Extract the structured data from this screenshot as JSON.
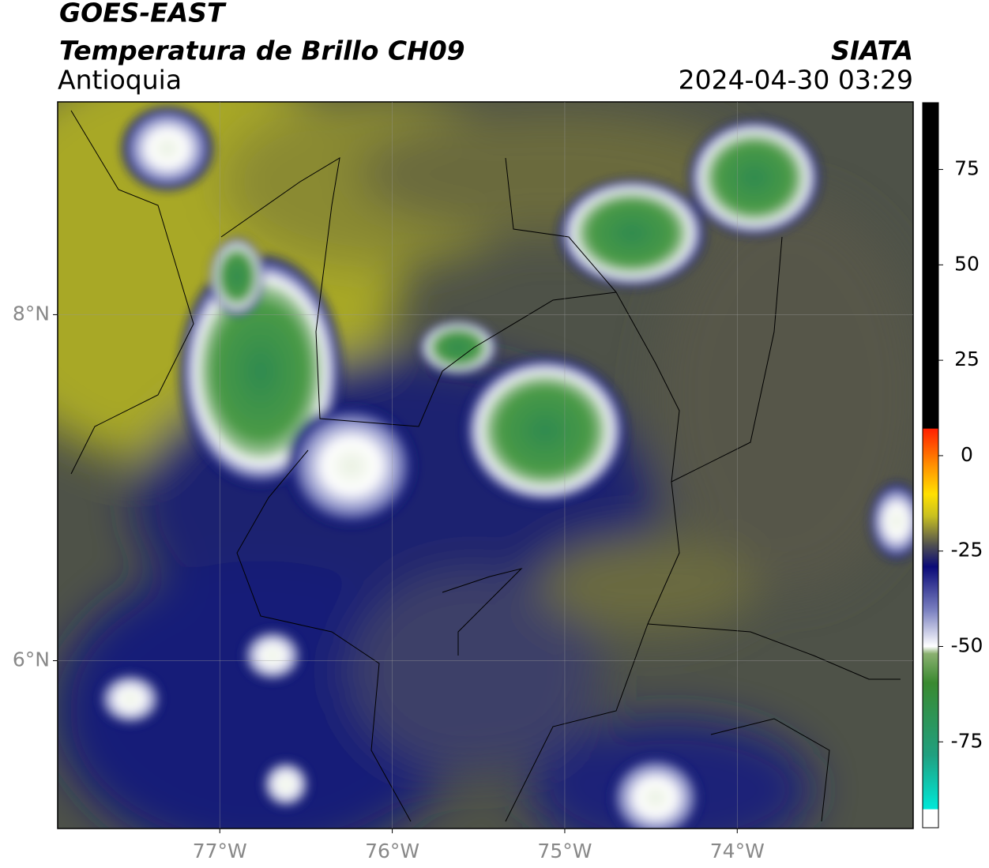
{
  "header": {
    "title": "GOES-EAST",
    "subtitle": "Temperatura de Brillo CH09",
    "region": "Antioquia",
    "source": "SIATA",
    "datetime": "2024-04-30 03:29"
  },
  "map": {
    "lonlim": [
      -77.94,
      -72.98
    ],
    "latlim": [
      5.03,
      9.23
    ],
    "lonticks": [
      {
        "value": -77,
        "label": "77°W"
      },
      {
        "value": -76,
        "label": "76°W"
      },
      {
        "value": -75,
        "label": "75°W"
      },
      {
        "value": -74,
        "label": "74°W"
      }
    ],
    "latticks": [
      {
        "value": 8,
        "label": "8°N"
      },
      {
        "value": 6,
        "label": "6°N"
      }
    ],
    "grid": true
  },
  "colorbar": {
    "lim": [
      -97.5,
      92.5
    ],
    "ticks": [
      75,
      50,
      25,
      0,
      -25,
      -50,
      -75
    ]
  }
}
